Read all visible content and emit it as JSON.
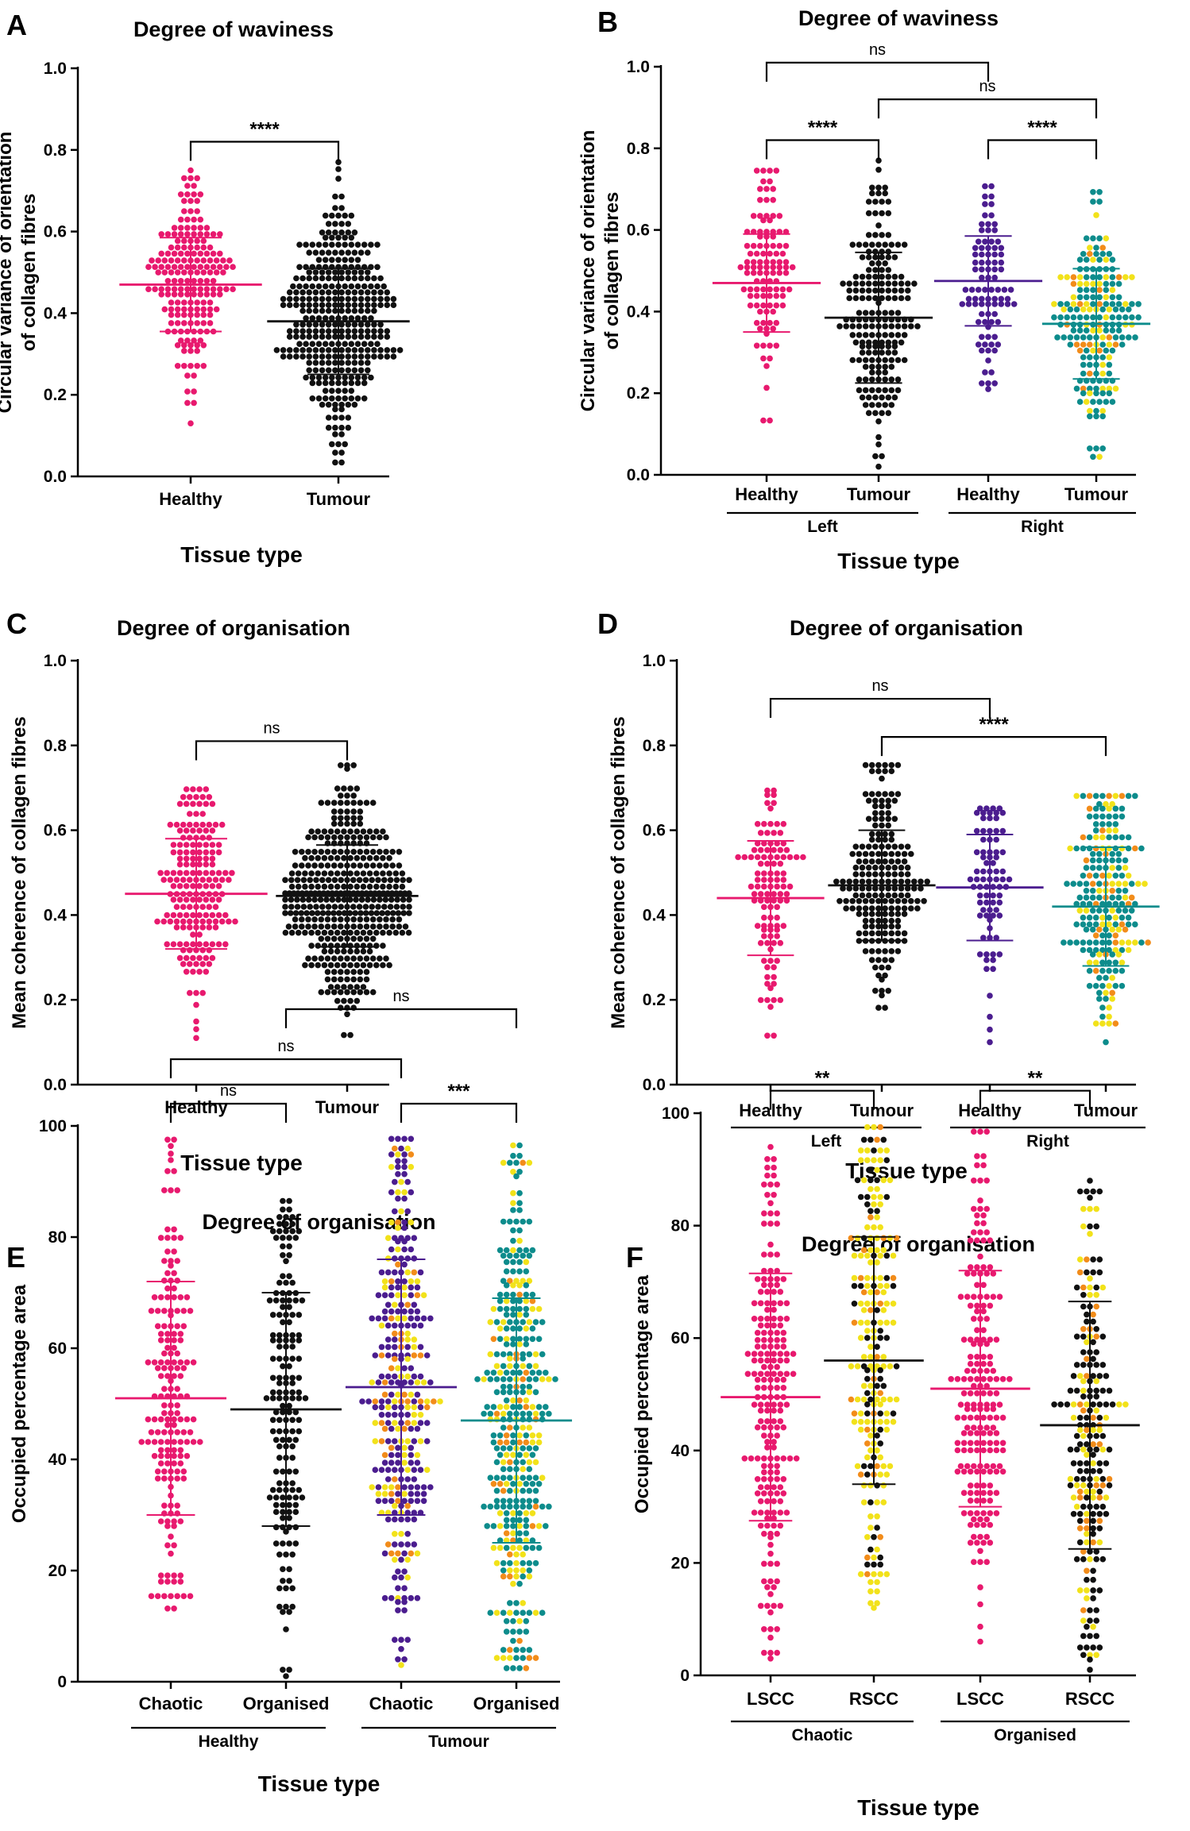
{
  "chart_data": [
    {
      "panel": "A",
      "type": "scatter",
      "title": "Degree of waviness",
      "ylabel": "Circular variance of orientation of collagen fibres",
      "xlabel": "Tissue type",
      "ylim": [
        0,
        1.0
      ],
      "yticks": [
        "0.0",
        "0.2",
        "0.4",
        "0.6",
        "0.8",
        "1.0"
      ],
      "groups": [
        {
          "label": "Healthy",
          "mean": 0.47,
          "sd": 0.115,
          "min": 0.13,
          "max": 0.75,
          "n": 190,
          "colors": [
            "#e8196e"
          ]
        },
        {
          "label": "Tumour",
          "mean": 0.38,
          "sd": 0.13,
          "min": 0.03,
          "max": 0.77,
          "n": 360,
          "colors": [
            "#111111"
          ]
        }
      ],
      "group_labels": [],
      "significance": [
        {
          "from": 0,
          "to": 1,
          "label": "****",
          "level": 0.82
        }
      ]
    },
    {
      "panel": "B",
      "type": "scatter",
      "title": "Degree of waviness",
      "ylabel": "Circular variance of orientation of collagen fibres",
      "xlabel": "Tissue type",
      "ylim": [
        0,
        1.0
      ],
      "yticks": [
        "0.0",
        "0.2",
        "0.4",
        "0.6",
        "0.8",
        "1.0"
      ],
      "groups": [
        {
          "label": "Healthy",
          "mean": 0.47,
          "sd": 0.12,
          "min": 0.13,
          "max": 0.75,
          "n": 110,
          "colors": [
            "#e8196e"
          ]
        },
        {
          "label": "Tumour",
          "mean": 0.385,
          "sd": 0.16,
          "min": 0.02,
          "max": 0.77,
          "n": 200,
          "colors": [
            "#111111"
          ]
        },
        {
          "label": "Healthy",
          "mean": 0.475,
          "sd": 0.11,
          "min": 0.21,
          "max": 0.71,
          "n": 90,
          "colors": [
            "#4b1d8f"
          ]
        },
        {
          "label": "Tumour",
          "mean": 0.37,
          "sd": 0.135,
          "min": 0.04,
          "max": 0.7,
          "n": 200,
          "colors": [
            "#0d8c8c",
            "#f2e21a",
            "#f28c1a"
          ]
        }
      ],
      "group_labels": [
        {
          "label": "Left",
          "from": 0,
          "to": 1
        },
        {
          "label": "Right",
          "from": 2,
          "to": 3
        }
      ],
      "significance": [
        {
          "from": 0,
          "to": 1,
          "label": "****",
          "level": 0.82
        },
        {
          "from": 2,
          "to": 3,
          "label": "****",
          "level": 0.82
        },
        {
          "from": 1,
          "to": 3,
          "label": "ns",
          "level": 0.92
        },
        {
          "from": 0,
          "to": 2,
          "label": "ns",
          "level": 1.01
        }
      ]
    },
    {
      "panel": "C",
      "type": "scatter",
      "title": "Degree of organisation",
      "ylabel": "Mean coherence of collagen fibres",
      "xlabel": "Tissue type",
      "ylim": [
        0,
        1.0
      ],
      "yticks": [
        "0.0",
        "0.2",
        "0.4",
        "0.6",
        "0.8",
        "1.0"
      ],
      "groups": [
        {
          "label": "Healthy",
          "mean": 0.45,
          "sd": 0.13,
          "min": 0.11,
          "max": 0.7,
          "n": 190,
          "colors": [
            "#e8196e"
          ]
        },
        {
          "label": "Tumour",
          "mean": 0.445,
          "sd": 0.12,
          "min": 0.11,
          "max": 0.76,
          "n": 420,
          "colors": [
            "#111111"
          ]
        }
      ],
      "group_labels": [],
      "significance": [
        {
          "from": 0,
          "to": 1,
          "label": "ns",
          "level": 0.81
        }
      ]
    },
    {
      "panel": "D",
      "type": "scatter",
      "title": "Degree of organisation",
      "ylabel": "Mean coherence of collagen fibres",
      "xlabel": "Tissue type",
      "ylim": [
        0,
        1.0
      ],
      "yticks": [
        "0.0",
        "0.2",
        "0.4",
        "0.6",
        "0.8",
        "1.0"
      ],
      "groups": [
        {
          "label": "Healthy",
          "mean": 0.44,
          "sd": 0.135,
          "min": 0.11,
          "max": 0.7,
          "n": 110,
          "colors": [
            "#e8196e"
          ]
        },
        {
          "label": "Tumour",
          "mean": 0.47,
          "sd": 0.13,
          "min": 0.18,
          "max": 0.76,
          "n": 210,
          "colors": [
            "#111111"
          ]
        },
        {
          "label": "Healthy",
          "mean": 0.465,
          "sd": 0.125,
          "min": 0.1,
          "max": 0.66,
          "n": 80,
          "colors": [
            "#4b1d8f"
          ]
        },
        {
          "label": "Tumour",
          "mean": 0.42,
          "sd": 0.14,
          "min": 0.1,
          "max": 0.69,
          "n": 220,
          "colors": [
            "#0d8c8c",
            "#f2e21a",
            "#f28c1a"
          ]
        }
      ],
      "group_labels": [
        {
          "label": "Left",
          "from": 0,
          "to": 1
        },
        {
          "label": "Right",
          "from": 2,
          "to": 3
        }
      ],
      "significance": [
        {
          "from": 1,
          "to": 3,
          "label": "****",
          "level": 0.82
        },
        {
          "from": 0,
          "to": 2,
          "label": "ns",
          "level": 0.91
        }
      ]
    },
    {
      "panel": "E",
      "type": "scatter",
      "title": "Degree of organisation",
      "ylabel": "Occupied percentage area",
      "xlabel": "Tissue type",
      "ylim": [
        0,
        100
      ],
      "yticks": [
        "0",
        "20",
        "40",
        "60",
        "80",
        "100"
      ],
      "groups": [
        {
          "label": "Chaotic",
          "mean": 51,
          "sd": 21,
          "min": 13,
          "max": 98,
          "n": 180,
          "colors": [
            "#e8196e"
          ]
        },
        {
          "label": "Organised",
          "mean": 49,
          "sd": 21,
          "min": 1,
          "max": 87,
          "n": 170,
          "colors": [
            "#111111"
          ]
        },
        {
          "label": "Chaotic",
          "mean": 53,
          "sd": 23,
          "min": 3,
          "max": 98,
          "n": 330,
          "colors": [
            "#4b1d8f",
            "#f2e21a",
            "#f28c1a"
          ]
        },
        {
          "label": "Organised",
          "mean": 47,
          "sd": 22,
          "min": 2,
          "max": 97,
          "n": 380,
          "colors": [
            "#0d8c8c",
            "#f2e21a",
            "#f28c1a"
          ]
        }
      ],
      "group_labels": [
        {
          "label": "Healthy",
          "from": 0,
          "to": 1
        },
        {
          "label": "Tumour",
          "from": 2,
          "to": 3
        }
      ],
      "significance": [
        {
          "from": 0,
          "to": 1,
          "label": "ns",
          "level": 104
        },
        {
          "from": 2,
          "to": 3,
          "label": "***",
          "level": 104
        },
        {
          "from": 0,
          "to": 2,
          "label": "ns",
          "level": 112
        },
        {
          "from": 1,
          "to": 3,
          "label": "ns",
          "level": 121
        }
      ]
    },
    {
      "panel": "F",
      "type": "scatter",
      "title": "Degree of organisation",
      "ylabel": "Occupied percentage area",
      "xlabel": "Tissue type",
      "ylim": [
        0,
        100
      ],
      "yticks": [
        "0",
        "20",
        "40",
        "60",
        "80",
        "100"
      ],
      "groups": [
        {
          "label": "LSCC",
          "mean": 49.5,
          "sd": 22,
          "min": 3,
          "max": 94,
          "n": 210,
          "colors": [
            "#e8196e"
          ]
        },
        {
          "label": "RSCC",
          "mean": 56,
          "sd": 22,
          "min": 12,
          "max": 98,
          "n": 220,
          "colors": [
            "#f2e21a",
            "#111111",
            "#f28c1a"
          ]
        },
        {
          "label": "LSCC",
          "mean": 51,
          "sd": 21,
          "min": 6,
          "max": 97,
          "n": 200,
          "colors": [
            "#e8196e"
          ]
        },
        {
          "label": "RSCC",
          "mean": 44.5,
          "sd": 22,
          "min": 1,
          "max": 88,
          "n": 220,
          "colors": [
            "#111111",
            "#f2e21a",
            "#f28c1a"
          ]
        }
      ],
      "group_labels": [
        {
          "label": "Chaotic",
          "from": 0,
          "to": 1
        },
        {
          "label": "Organised",
          "from": 2,
          "to": 3
        }
      ],
      "significance": [
        {
          "from": 0,
          "to": 1,
          "label": "**",
          "level": 104
        },
        {
          "from": 2,
          "to": 3,
          "label": "**",
          "level": 104
        }
      ]
    }
  ]
}
